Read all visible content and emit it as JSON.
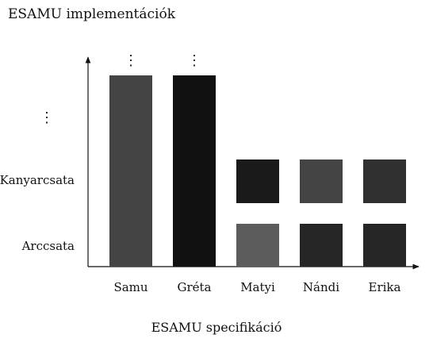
{
  "chart_data": {
    "type": "bar",
    "title": "ESAMU implementációk",
    "xlabel": "ESAMU specifikáció",
    "ylabel": "",
    "categories": [
      "Samu",
      "Gréta",
      "Matyi",
      "Nándi",
      "Erika"
    ],
    "y_levels": [
      "Arccsata",
      "Kanyarcsata",
      "⋮"
    ],
    "cells": [
      {
        "category": "Samu",
        "from": 0,
        "to": 3,
        "continues": true,
        "color": "#444444"
      },
      {
        "category": "Gréta",
        "from": 0,
        "to": 3,
        "continues": true,
        "color": "#111111"
      },
      {
        "category": "Matyi",
        "level": 0,
        "color": "#5c5c5c"
      },
      {
        "category": "Matyi",
        "level": 1,
        "color": "#1a1a1a"
      },
      {
        "category": "Nándi",
        "level": 0,
        "color": "#262626"
      },
      {
        "category": "Nándi",
        "level": 1,
        "color": "#444444"
      },
      {
        "category": "Erika",
        "level": 0,
        "color": "#262626"
      },
      {
        "category": "Erika",
        "level": 1,
        "color": "#303030"
      }
    ],
    "continuation_mark": "⋮",
    "grid": false,
    "legend": "none"
  }
}
